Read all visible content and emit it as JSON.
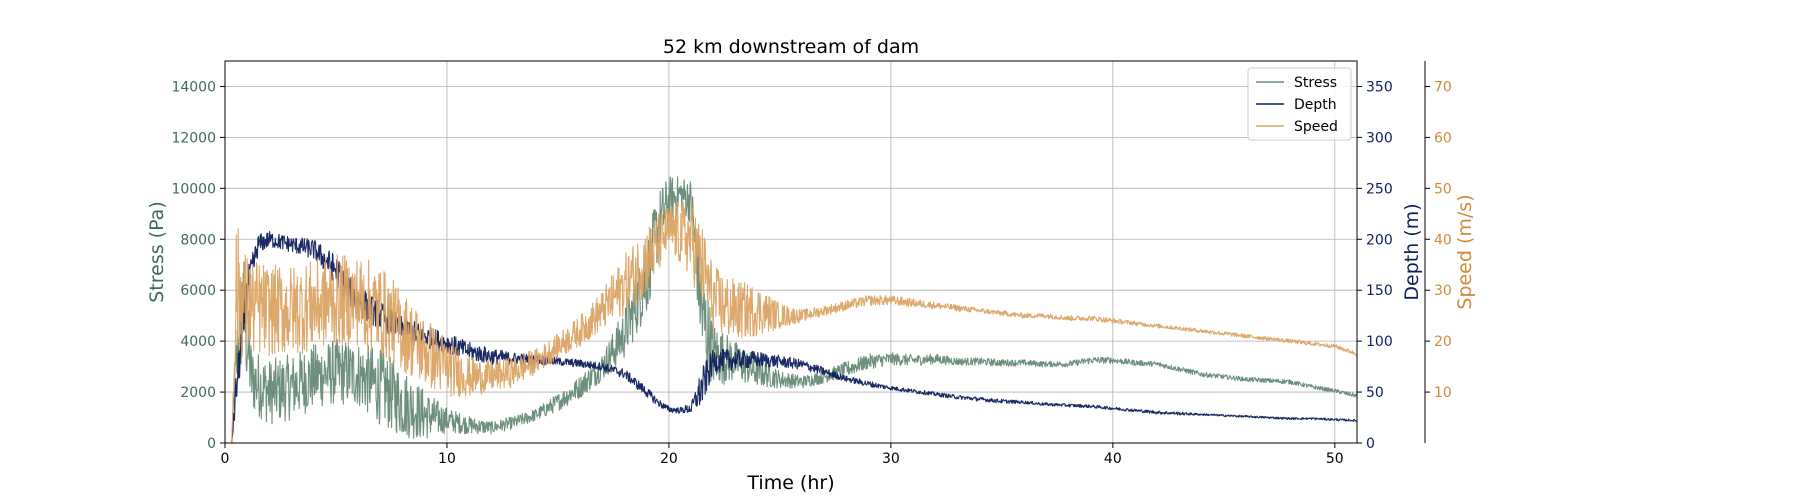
{
  "chart_data": {
    "type": "line",
    "title": "52 km downstream of dam",
    "xlabel": "Time (hr)",
    "xlim": [
      0,
      51
    ],
    "xticks": [
      0,
      10,
      20,
      30,
      40,
      50
    ],
    "grid": true,
    "legend_position": "top-right",
    "axes": [
      {
        "id": "stress",
        "label": "Stress (Pa)",
        "side": "left",
        "ylim": [
          0,
          15000
        ],
        "ticks": [
          0,
          2000,
          4000,
          6000,
          8000,
          10000,
          12000,
          14000
        ],
        "color": "#3f6b55"
      },
      {
        "id": "depth",
        "label": "Depth (m)",
        "side": "right",
        "ylim": [
          0,
          375
        ],
        "ticks": [
          0,
          50,
          100,
          150,
          200,
          250,
          300,
          350
        ],
        "color": "#0f1f5c"
      },
      {
        "id": "speed",
        "label": "Speed (m/s)",
        "side": "right-offset",
        "ylim": [
          0,
          75
        ],
        "ticks": [
          10,
          20,
          30,
          40,
          50,
          60,
          70
        ],
        "color": "#d08a3c"
      }
    ],
    "series": [
      {
        "name": "Stress",
        "axis": "stress",
        "color": "#658a76",
        "x": [
          0.3,
          0.5,
          0.8,
          1.2,
          2,
          3,
          4,
          5,
          6,
          7,
          8,
          9,
          10,
          11,
          12,
          13,
          14,
          15,
          16,
          17,
          18,
          19,
          19.5,
          20,
          20.5,
          21,
          21.5,
          22,
          23,
          24,
          25,
          26,
          27,
          28,
          29,
          30,
          31,
          32,
          33,
          34,
          35,
          36,
          37,
          38,
          39,
          40,
          41,
          42,
          43,
          44,
          45,
          46,
          47,
          48,
          49,
          50,
          51
        ],
        "y": [
          0,
          3000,
          5500,
          2500,
          2000,
          2200,
          2600,
          2800,
          2700,
          2200,
          1600,
          1100,
          900,
          700,
          600,
          800,
          1100,
          1600,
          2200,
          3000,
          4300,
          6500,
          8500,
          9500,
          9800,
          9500,
          5000,
          3500,
          3200,
          2800,
          2500,
          2400,
          2600,
          2900,
          3200,
          3300,
          3250,
          3300,
          3200,
          3200,
          3150,
          3150,
          3100,
          3100,
          3250,
          3250,
          3150,
          3100,
          2900,
          2700,
          2600,
          2500,
          2450,
          2400,
          2200,
          2050,
          1850
        ],
        "spread": [
          0,
          1500,
          2500,
          1300,
          1300,
          1300,
          1300,
          1300,
          1300,
          1500,
          1400,
          1000,
          500,
          350,
          250,
          250,
          250,
          350,
          450,
          550,
          1000,
          1500,
          1400,
          1000,
          700,
          900,
          2200,
          1300,
          800,
          600,
          350,
          250,
          250,
          300,
          300,
          250,
          220,
          200,
          150,
          150,
          140,
          120,
          110,
          110,
          140,
          120,
          110,
          100,
          100,
          100,
          90,
          90,
          90,
          90,
          80,
          80,
          80
        ]
      },
      {
        "name": "Depth",
        "axis": "depth",
        "color": "#0f1f5c",
        "x": [
          0.3,
          0.5,
          1,
          1.5,
          2,
          3,
          4,
          5,
          5.5,
          6,
          7,
          8,
          9,
          10,
          11,
          12,
          13,
          14,
          15,
          16,
          17,
          18,
          19,
          19.5,
          20,
          20.5,
          21,
          21.5,
          22,
          23,
          24,
          25,
          26,
          27,
          28,
          29,
          30,
          31,
          32,
          33,
          34,
          35,
          36,
          37,
          38,
          39,
          40,
          41,
          42,
          43,
          44,
          45,
          46,
          47,
          48,
          49,
          50,
          51
        ],
        "y": [
          0,
          50,
          150,
          195,
          200,
          195,
          190,
          170,
          150,
          140,
          125,
          112,
          105,
          98,
          90,
          85,
          83,
          82,
          80,
          78,
          75,
          68,
          50,
          40,
          33,
          32,
          34,
          55,
          80,
          82,
          82,
          80,
          77,
          70,
          63,
          58,
          54,
          51,
          48,
          45,
          43,
          41,
          40,
          38,
          37,
          36,
          34,
          32,
          30,
          29,
          28,
          27,
          26,
          25,
          24,
          24,
          23,
          22
        ],
        "spread": [
          0,
          20,
          20,
          10,
          8,
          8,
          10,
          15,
          15,
          15,
          14,
          12,
          11,
          10,
          9,
          8,
          6,
          5,
          4,
          4,
          4,
          5,
          5,
          4,
          3,
          3,
          5,
          20,
          12,
          10,
          8,
          6,
          5,
          4,
          3,
          3,
          2,
          2,
          2,
          2,
          2,
          2,
          1.5,
          1.5,
          1.5,
          1.5,
          1.5,
          1.5,
          1.5,
          1.5,
          1,
          1,
          1,
          1,
          1,
          1,
          1,
          1
        ]
      },
      {
        "name": "Speed",
        "axis": "speed",
        "color": "#dba363",
        "x": [
          0.3,
          0.5,
          1,
          2,
          3,
          4,
          5,
          6,
          7,
          8,
          9,
          10,
          11,
          12,
          13,
          14,
          15,
          16,
          17,
          18,
          19,
          20,
          21,
          21.5,
          22,
          23,
          24,
          25,
          26,
          27,
          28,
          29,
          30,
          31,
          32,
          33,
          34,
          35,
          36,
          37,
          38,
          39,
          40,
          41,
          42,
          43,
          44,
          45,
          46,
          47,
          48,
          49,
          50,
          51
        ],
        "y": [
          0,
          30,
          27,
          26,
          26,
          27,
          28,
          28,
          26,
          22,
          18,
          15,
          13,
          13,
          14,
          16,
          19,
          22,
          26,
          31,
          36,
          42,
          40,
          35,
          28,
          26,
          26,
          25,
          25,
          26,
          27,
          28,
          28,
          27.5,
          27,
          26.5,
          26,
          25.5,
          25,
          25,
          24.5,
          24.5,
          24,
          23.5,
          23,
          22.5,
          22,
          21.5,
          21,
          20.5,
          20,
          19.5,
          19,
          17.5
        ],
        "spread": [
          0,
          14,
          10,
          9,
          9,
          9,
          9,
          9,
          9,
          8,
          7,
          6,
          4,
          3,
          3,
          2.5,
          2.5,
          3,
          4,
          6,
          7,
          5,
          8,
          8,
          7,
          6,
          5,
          2.5,
          1.2,
          1,
          1,
          1,
          1,
          0.8,
          0.7,
          0.6,
          0.5,
          0.5,
          0.5,
          0.5,
          0.5,
          0.5,
          0.5,
          0.4,
          0.4,
          0.4,
          0.4,
          0.4,
          0.4,
          0.4,
          0.4,
          0.4,
          0.4,
          0.4
        ]
      }
    ]
  }
}
